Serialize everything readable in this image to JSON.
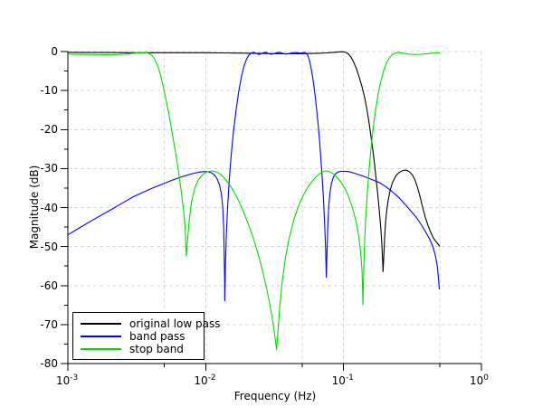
{
  "figure": {
    "background": "#ffffff"
  },
  "chart_data": {
    "type": "line",
    "title": "",
    "xlabel": "Frequency (Hz)",
    "ylabel": "Magnitude (dB)",
    "x_scale": "log",
    "xlim": [
      0.001,
      1
    ],
    "ylim": [
      -80,
      0
    ],
    "axes": {
      "x": {
        "ticks": [
          {
            "base": "10",
            "exponent": "-3",
            "value": 0.001
          },
          {
            "base": "10",
            "exponent": "-2",
            "value": 0.01
          },
          {
            "base": "10",
            "exponent": "-1",
            "value": 0.1
          },
          {
            "base": "10",
            "exponent": "0",
            "value": 1
          }
        ],
        "subticks": [
          0.005,
          0.05,
          0.5
        ],
        "grid_freq": [
          0.005,
          0.01,
          0.05,
          0.1,
          0.5,
          1
        ]
      },
      "y": {
        "ticks": [
          {
            "label": "0",
            "value": 0
          },
          {
            "label": "-10",
            "value": -10
          },
          {
            "label": "-20",
            "value": -20
          },
          {
            "label": "-30",
            "value": -30
          },
          {
            "label": "-40",
            "value": -40
          },
          {
            "label": "-50",
            "value": -50
          },
          {
            "label": "-60",
            "value": -60
          },
          {
            "label": "-70",
            "value": -70
          },
          {
            "label": "-80",
            "value": -80
          }
        ],
        "subtick_step": 5,
        "grid_db": [
          0,
          -10,
          -20,
          -30,
          -40,
          -50,
          -60,
          -70
        ]
      }
    },
    "grid_color": "#d8d8d8",
    "legend": {
      "position": "bottom-left",
      "entries": [
        {
          "label": "original low pass",
          "color": "#000000"
        },
        {
          "label": "band pass",
          "color": "#0000ff"
        },
        {
          "label": "stop band",
          "color": "#00dd00"
        }
      ]
    },
    "series": [
      {
        "name": "original low pass",
        "color": "#000000",
        "points": [
          [
            0.001,
            -0.2
          ],
          [
            0.0015,
            -0.25
          ],
          [
            0.002,
            -0.25
          ],
          [
            0.003,
            -0.3
          ],
          [
            0.004,
            -0.3
          ],
          [
            0.006,
            -0.3
          ],
          [
            0.008,
            -0.3
          ],
          [
            0.01,
            -0.3
          ],
          [
            0.013,
            -0.35
          ],
          [
            0.017,
            -0.4
          ],
          [
            0.022,
            -0.45
          ],
          [
            0.028,
            -0.5
          ],
          [
            0.035,
            -0.55
          ],
          [
            0.045,
            -0.55
          ],
          [
            0.055,
            -0.5
          ],
          [
            0.065,
            -0.45
          ],
          [
            0.075,
            -0.35
          ],
          [
            0.085,
            -0.2
          ],
          [
            0.092,
            -0.1
          ],
          [
            0.098,
            -0.05
          ],
          [
            0.103,
            -0.15
          ],
          [
            0.108,
            -0.6
          ],
          [
            0.113,
            -1.4
          ],
          [
            0.118,
            -2.6
          ],
          [
            0.124,
            -4.4
          ],
          [
            0.13,
            -6.6
          ],
          [
            0.136,
            -9
          ],
          [
            0.142,
            -11.7
          ],
          [
            0.148,
            -15
          ],
          [
            0.153,
            -18.2
          ],
          [
            0.158,
            -21.6
          ],
          [
            0.163,
            -25.2
          ],
          [
            0.168,
            -29
          ],
          [
            0.172,
            -32.4
          ],
          [
            0.176,
            -35.8
          ],
          [
            0.18,
            -39.4
          ],
          [
            0.184,
            -43
          ],
          [
            0.187,
            -46.2
          ],
          [
            0.19,
            -50
          ],
          [
            0.192,
            -53.5
          ],
          [
            0.1935,
            -56.5
          ],
          [
            0.196,
            -52
          ],
          [
            0.199,
            -47
          ],
          [
            0.202,
            -43.5
          ],
          [
            0.206,
            -40.5
          ],
          [
            0.211,
            -38
          ],
          [
            0.218,
            -35.5
          ],
          [
            0.227,
            -33.5
          ],
          [
            0.24,
            -31.8
          ],
          [
            0.255,
            -30.9
          ],
          [
            0.27,
            -30.5
          ],
          [
            0.285,
            -30.4
          ],
          [
            0.3,
            -30.8
          ],
          [
            0.315,
            -31.6
          ],
          [
            0.33,
            -33
          ],
          [
            0.345,
            -35
          ],
          [
            0.36,
            -37.4
          ],
          [
            0.375,
            -40
          ],
          [
            0.392,
            -42.5
          ],
          [
            0.41,
            -44.6
          ],
          [
            0.43,
            -46.5
          ],
          [
            0.45,
            -47.9
          ],
          [
            0.47,
            -48.8
          ],
          [
            0.49,
            -49.6
          ],
          [
            0.5,
            -50
          ]
        ]
      },
      {
        "name": "band pass",
        "color": "#0000ff",
        "points": [
          [
            0.001,
            -47
          ],
          [
            0.0012,
            -45.3
          ],
          [
            0.0015,
            -43.3
          ],
          [
            0.002,
            -40.8
          ],
          [
            0.0025,
            -38.8
          ],
          [
            0.003,
            -37.2
          ],
          [
            0.004,
            -35.2
          ],
          [
            0.005,
            -33.8
          ],
          [
            0.006,
            -32.7
          ],
          [
            0.007,
            -31.9
          ],
          [
            0.008,
            -31.3
          ],
          [
            0.009,
            -30.9
          ],
          [
            0.0096,
            -30.8
          ],
          [
            0.0103,
            -30.8
          ],
          [
            0.011,
            -31.1
          ],
          [
            0.0116,
            -31.7
          ],
          [
            0.0121,
            -32.6
          ],
          [
            0.0126,
            -34.2
          ],
          [
            0.013,
            -36.6
          ],
          [
            0.0133,
            -40
          ],
          [
            0.0135,
            -45
          ],
          [
            0.0136,
            -51
          ],
          [
            0.0137,
            -58
          ],
          [
            0.01375,
            -64
          ],
          [
            0.0139,
            -55
          ],
          [
            0.0141,
            -47
          ],
          [
            0.0144,
            -40
          ],
          [
            0.0148,
            -33
          ],
          [
            0.0153,
            -26.5
          ],
          [
            0.0159,
            -20.5
          ],
          [
            0.0166,
            -15
          ],
          [
            0.0174,
            -10
          ],
          [
            0.0182,
            -6.2
          ],
          [
            0.019,
            -3.6
          ],
          [
            0.0198,
            -1.9
          ],
          [
            0.0206,
            -0.9
          ],
          [
            0.0214,
            -0.4
          ],
          [
            0.0222,
            -0.2
          ],
          [
            0.0232,
            -0.45
          ],
          [
            0.0242,
            -0.75
          ],
          [
            0.0252,
            -0.6
          ],
          [
            0.0262,
            -0.3
          ],
          [
            0.0274,
            -0.2
          ],
          [
            0.0286,
            -0.5
          ],
          [
            0.0298,
            -0.7
          ],
          [
            0.0312,
            -0.55
          ],
          [
            0.0328,
            -0.3
          ],
          [
            0.0344,
            -0.2
          ],
          [
            0.036,
            -0.45
          ],
          [
            0.038,
            -0.65
          ],
          [
            0.04,
            -0.55
          ],
          [
            0.042,
            -0.35
          ],
          [
            0.044,
            -0.25
          ],
          [
            0.046,
            -0.3
          ],
          [
            0.048,
            -0.4
          ],
          [
            0.05,
            -0.35
          ],
          [
            0.052,
            -0.25
          ],
          [
            0.0535,
            -0.4
          ],
          [
            0.055,
            -1
          ],
          [
            0.0565,
            -2.2
          ],
          [
            0.058,
            -4
          ],
          [
            0.0595,
            -6.3
          ],
          [
            0.061,
            -9
          ],
          [
            0.0625,
            -12
          ],
          [
            0.064,
            -15.3
          ],
          [
            0.0655,
            -19
          ],
          [
            0.067,
            -23
          ],
          [
            0.0685,
            -27.5
          ],
          [
            0.07,
            -32.5
          ],
          [
            0.0715,
            -38
          ],
          [
            0.073,
            -44.5
          ],
          [
            0.0742,
            -51
          ],
          [
            0.075,
            -58
          ],
          [
            0.0758,
            -52
          ],
          [
            0.0768,
            -45
          ],
          [
            0.078,
            -40
          ],
          [
            0.0795,
            -36.5
          ],
          [
            0.0815,
            -34
          ],
          [
            0.084,
            -32.4
          ],
          [
            0.087,
            -31.4
          ],
          [
            0.091,
            -30.9
          ],
          [
            0.096,
            -30.7
          ],
          [
            0.102,
            -30.7
          ],
          [
            0.11,
            -30.8
          ],
          [
            0.12,
            -31.2
          ],
          [
            0.135,
            -31.8
          ],
          [
            0.15,
            -32.4
          ],
          [
            0.165,
            -33
          ],
          [
            0.184,
            -33.7
          ],
          [
            0.2,
            -34.5
          ],
          [
            0.22,
            -35.6
          ],
          [
            0.25,
            -37.3
          ],
          [
            0.28,
            -39.2
          ],
          [
            0.31,
            -41
          ],
          [
            0.337,
            -42.5
          ],
          [
            0.365,
            -44.3
          ],
          [
            0.39,
            -46
          ],
          [
            0.42,
            -48
          ],
          [
            0.445,
            -50
          ],
          [
            0.465,
            -52.5
          ],
          [
            0.478,
            -55
          ],
          [
            0.488,
            -58
          ],
          [
            0.495,
            -61
          ]
        ]
      },
      {
        "name": "stop band",
        "color": "#00dd00",
        "points": [
          [
            0.001,
            -0.7
          ],
          [
            0.0014,
            -0.75
          ],
          [
            0.0018,
            -0.8
          ],
          [
            0.0022,
            -0.8
          ],
          [
            0.0026,
            -0.65
          ],
          [
            0.003,
            -0.45
          ],
          [
            0.0033,
            -0.3
          ],
          [
            0.0036,
            -0.25
          ],
          [
            0.0039,
            -0.5
          ],
          [
            0.0041,
            -1.1
          ],
          [
            0.0043,
            -2.2
          ],
          [
            0.0045,
            -3.8
          ],
          [
            0.0047,
            -6
          ],
          [
            0.0049,
            -8.7
          ],
          [
            0.0051,
            -11.6
          ],
          [
            0.0054,
            -16
          ],
          [
            0.0057,
            -20.6
          ],
          [
            0.006,
            -25.2
          ],
          [
            0.0063,
            -30
          ],
          [
            0.0066,
            -35
          ],
          [
            0.0069,
            -40.5
          ],
          [
            0.0071,
            -45.5
          ],
          [
            0.00722,
            -52.5
          ],
          [
            0.0074,
            -48
          ],
          [
            0.0076,
            -43
          ],
          [
            0.0079,
            -38.5
          ],
          [
            0.0083,
            -35.2
          ],
          [
            0.0088,
            -33
          ],
          [
            0.0094,
            -31.7
          ],
          [
            0.01,
            -31
          ],
          [
            0.0107,
            -30.7
          ],
          [
            0.0113,
            -30.6
          ],
          [
            0.012,
            -30.9
          ],
          [
            0.0128,
            -31.5
          ],
          [
            0.0137,
            -32.5
          ],
          [
            0.0148,
            -34
          ],
          [
            0.016,
            -35.9
          ],
          [
            0.0173,
            -38.2
          ],
          [
            0.0187,
            -40.9
          ],
          [
            0.0202,
            -43.9
          ],
          [
            0.0219,
            -47.3
          ],
          [
            0.0237,
            -51.2
          ],
          [
            0.0256,
            -55.6
          ],
          [
            0.0277,
            -60.8
          ],
          [
            0.0295,
            -65.8
          ],
          [
            0.031,
            -70.3
          ],
          [
            0.032,
            -74
          ],
          [
            0.0327,
            -76.5
          ],
          [
            0.0334,
            -72
          ],
          [
            0.0345,
            -65
          ],
          [
            0.036,
            -58.5
          ],
          [
            0.038,
            -52.5
          ],
          [
            0.0405,
            -47.5
          ],
          [
            0.0435,
            -43.2
          ],
          [
            0.047,
            -39.7
          ],
          [
            0.051,
            -36.9
          ],
          [
            0.0555,
            -34.6
          ],
          [
            0.06,
            -33
          ],
          [
            0.0645,
            -31.8
          ],
          [
            0.069,
            -31
          ],
          [
            0.0735,
            -30.6
          ],
          [
            0.078,
            -30.7
          ],
          [
            0.083,
            -31.2
          ],
          [
            0.089,
            -32.1
          ],
          [
            0.0955,
            -33.4
          ],
          [
            0.1025,
            -35.2
          ],
          [
            0.11,
            -37.6
          ],
          [
            0.1175,
            -40.7
          ],
          [
            0.124,
            -44
          ],
          [
            0.129,
            -47.5
          ],
          [
            0.133,
            -51.5
          ],
          [
            0.136,
            -56
          ],
          [
            0.1375,
            -61
          ],
          [
            0.1383,
            -65
          ],
          [
            0.139,
            -60
          ],
          [
            0.1405,
            -54
          ],
          [
            0.1425,
            -48
          ],
          [
            0.145,
            -42.5
          ],
          [
            0.148,
            -37.5
          ],
          [
            0.1515,
            -32.5
          ],
          [
            0.1555,
            -27.5
          ],
          [
            0.16,
            -23
          ],
          [
            0.165,
            -18.8
          ],
          [
            0.171,
            -14.8
          ],
          [
            0.178,
            -11
          ],
          [
            0.186,
            -7.8
          ],
          [
            0.195,
            -5
          ],
          [
            0.205,
            -2.9
          ],
          [
            0.216,
            -1.5
          ],
          [
            0.228,
            -0.7
          ],
          [
            0.24,
            -0.3
          ],
          [
            0.25,
            -0.2
          ],
          [
            0.265,
            -0.35
          ],
          [
            0.285,
            -0.55
          ],
          [
            0.305,
            -0.7
          ],
          [
            0.33,
            -0.75
          ],
          [
            0.36,
            -0.7
          ],
          [
            0.39,
            -0.6
          ],
          [
            0.42,
            -0.5
          ],
          [
            0.45,
            -0.4
          ],
          [
            0.48,
            -0.32
          ],
          [
            0.5,
            -0.3
          ]
        ]
      }
    ]
  }
}
